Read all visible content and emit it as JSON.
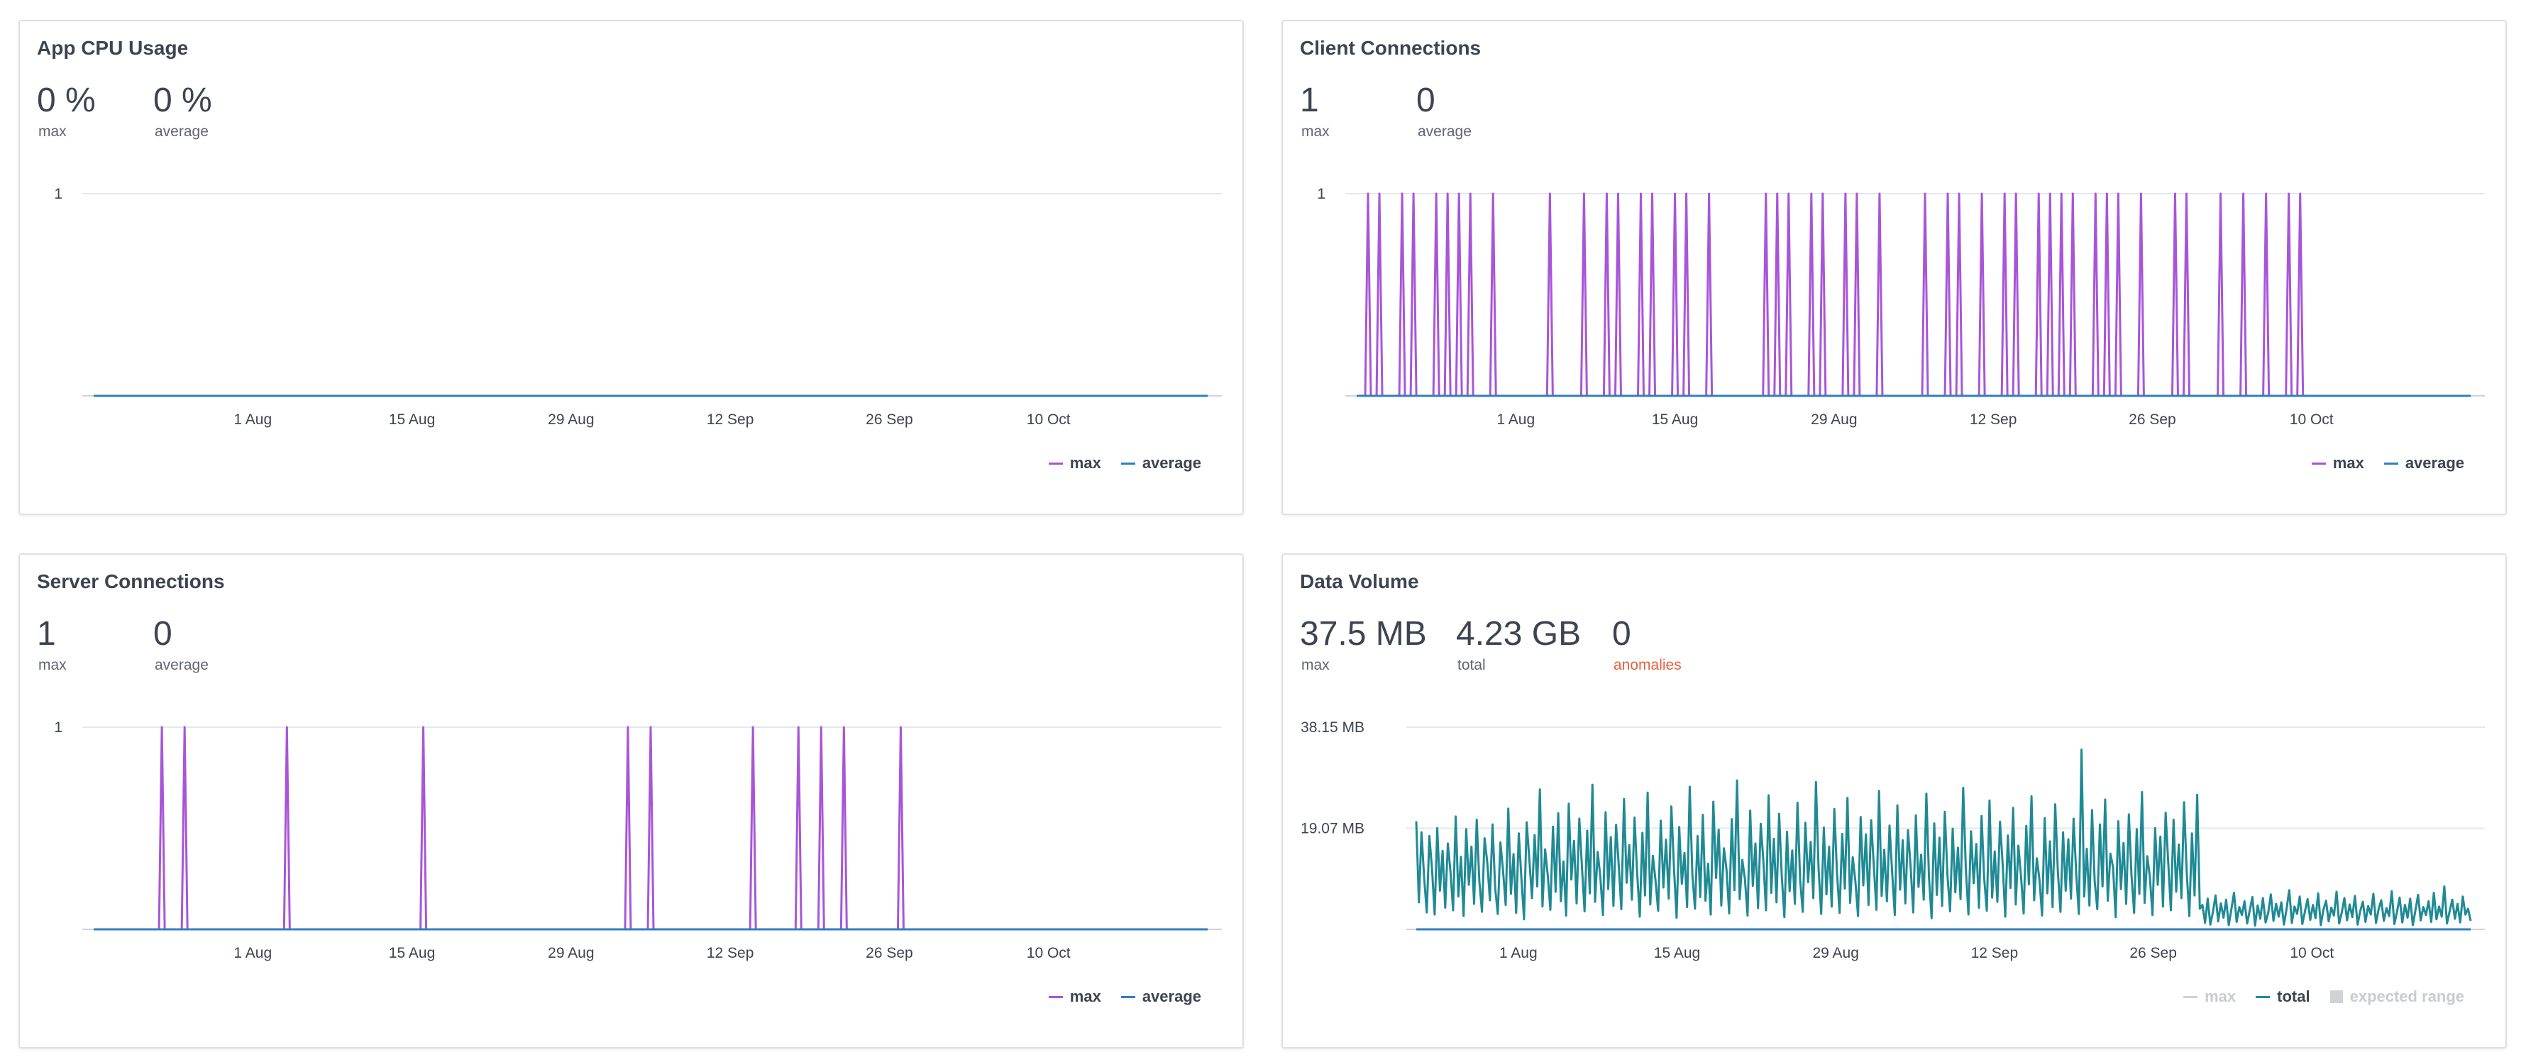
{
  "colors": {
    "max": "#a855d8",
    "average": "#2f7fc1",
    "total": "#1f8a94",
    "muted": "#cfd3d8"
  },
  "panels": [
    {
      "title": "App CPU Usage",
      "stats": [
        {
          "value": "0 %",
          "label": "max"
        },
        {
          "value": "0 %",
          "label": "average"
        }
      ],
      "legend": [
        {
          "label": "max",
          "color": "#a855d8"
        },
        {
          "label": "average",
          "color": "#2f7fc1"
        }
      ]
    },
    {
      "title": "Client Connections",
      "stats": [
        {
          "value": "1",
          "label": "max"
        },
        {
          "value": "0",
          "label": "average"
        }
      ],
      "legend": [
        {
          "label": "max",
          "color": "#a855d8"
        },
        {
          "label": "average",
          "color": "#2f7fc1"
        }
      ]
    },
    {
      "title": "Server Connections",
      "stats": [
        {
          "value": "1",
          "label": "max"
        },
        {
          "value": "0",
          "label": "average"
        }
      ],
      "legend": [
        {
          "label": "max",
          "color": "#a855d8"
        },
        {
          "label": "average",
          "color": "#2f7fc1"
        }
      ]
    },
    {
      "title": "Data Volume",
      "stats": [
        {
          "value": "37.5 MB",
          "label": "max"
        },
        {
          "value": "4.23 GB",
          "label": "total"
        },
        {
          "value": "0",
          "label": "anomalies"
        }
      ],
      "legend": [
        {
          "label": "max",
          "color": "#cfd3d8",
          "muted": true
        },
        {
          "label": "total",
          "color": "#1f8a94"
        },
        {
          "label": "expected range",
          "color": "#cfd3d8",
          "muted": true,
          "box": true
        }
      ]
    }
  ],
  "chart_data": [
    {
      "type": "line",
      "x_range": [
        "2024-07-18",
        "2024-10-24"
      ],
      "x_ticks": [
        "1 Aug",
        "15 Aug",
        "29 Aug",
        "12 Sep",
        "26 Sep",
        "10 Oct"
      ],
      "y_ticks": [
        "1"
      ],
      "ylim": [
        0,
        1
      ],
      "grid": true,
      "legend_position": "bottom-right",
      "series": [
        {
          "name": "max",
          "color": "#a855d8",
          "spikes": []
        },
        {
          "name": "average",
          "color": "#2f7fc1",
          "constant": 0
        }
      ]
    },
    {
      "type": "line",
      "x_range": [
        "2024-07-18",
        "2024-10-24"
      ],
      "x_ticks": [
        "1 Aug",
        "15 Aug",
        "29 Aug",
        "12 Sep",
        "26 Sep",
        "10 Oct"
      ],
      "y_ticks": [
        "1"
      ],
      "ylim": [
        0,
        1
      ],
      "grid": true,
      "legend_position": "bottom-right",
      "series": [
        {
          "name": "max",
          "color": "#a855d8",
          "spikes": [
            "2024-07-19",
            "2024-07-20",
            "2024-07-22",
            "2024-07-23",
            "2024-07-25",
            "2024-07-26",
            "2024-07-27",
            "2024-07-28",
            "2024-07-30",
            "2024-08-04",
            "2024-08-07",
            "2024-08-09",
            "2024-08-10",
            "2024-08-12",
            "2024-08-13",
            "2024-08-15",
            "2024-08-16",
            "2024-08-18",
            "2024-08-23",
            "2024-08-24",
            "2024-08-25",
            "2024-08-27",
            "2024-08-28",
            "2024-08-30",
            "2024-08-31",
            "2024-09-02",
            "2024-09-06",
            "2024-09-08",
            "2024-09-09",
            "2024-09-11",
            "2024-09-13",
            "2024-09-14",
            "2024-09-16",
            "2024-09-17",
            "2024-09-18",
            "2024-09-19",
            "2024-09-21",
            "2024-09-22",
            "2024-09-23",
            "2024-09-25",
            "2024-09-28",
            "2024-09-29",
            "2024-10-02",
            "2024-10-04",
            "2024-10-06",
            "2024-10-08",
            "2024-10-09"
          ]
        },
        {
          "name": "average",
          "color": "#2f7fc1",
          "constant": 0
        }
      ]
    },
    {
      "type": "line",
      "x_range": [
        "2024-07-18",
        "2024-10-24"
      ],
      "x_ticks": [
        "1 Aug",
        "15 Aug",
        "29 Aug",
        "12 Sep",
        "26 Sep",
        "10 Oct"
      ],
      "y_ticks": [
        "1"
      ],
      "ylim": [
        0,
        1
      ],
      "grid": true,
      "legend_position": "bottom-right",
      "series": [
        {
          "name": "max",
          "color": "#a855d8",
          "spikes": [
            "2024-07-24",
            "2024-07-26",
            "2024-08-04",
            "2024-08-16",
            "2024-09-03",
            "2024-09-05",
            "2024-09-14",
            "2024-09-18",
            "2024-09-20",
            "2024-09-22",
            "2024-09-27"
          ]
        },
        {
          "name": "average",
          "color": "#2f7fc1",
          "constant": 0
        }
      ]
    },
    {
      "type": "line",
      "x_range": [
        "2024-07-23",
        "2024-10-24"
      ],
      "x_ticks": [
        "1 Aug",
        "15 Aug",
        "29 Aug",
        "12 Sep",
        "26 Sep",
        "10 Oct"
      ],
      "y_ticks": [
        "38.15 MB",
        "19.07 MB"
      ],
      "ylim": [
        0,
        38.15
      ],
      "y_unit": "MB",
      "grid": true,
      "legend_position": "bottom-right",
      "series": [
        {
          "name": "total",
          "color": "#1f8a94",
          "values": [
            20.4,
            5.1,
            18.3,
            9.8,
            3.2,
            17.6,
            11.4,
            2.8,
            19.1,
            7.3,
            14.8,
            4.1,
            16.2,
            10.9,
            3.6,
            21.3,
            6.2,
            13.7,
            2.5,
            18.9,
            8.4,
            15.6,
            4.8,
            20.7,
            9.1,
            3.3,
            17.2,
            12.6,
            5.5,
            19.8,
            7.8,
            2.9,
            16.4,
            11.1,
            4.6,
            22.8,
            6.7,
            14.2,
            3.1,
            18.1,
            9.6,
            1.9,
            20.2,
            13.3,
            5.9,
            17.8,
            8.1,
            26.4,
            4.3,
            15.1,
            10.2,
            3.7,
            19.4,
            7.1,
            21.9,
            5.3,
            12.8,
            2.6,
            23.7,
            9.4,
            16.7,
            4.9,
            20.9,
            11.8,
            3.4,
            18.6,
            6.8,
            27.3,
            5.2,
            14.6,
            9.9,
            2.7,
            22.1,
            7.6,
            17.4,
            4.4,
            19.7,
            12.2,
            3.8,
            24.6,
            8.8,
            15.9,
            5.6,
            21.1,
            10.6,
            2.4,
            18.2,
            6.4,
            25.8,
            4.7,
            13.9,
            9.2,
            3.5,
            20.5,
            7.9,
            16.9,
            5.8,
            23.2,
            11.6,
            2.2,
            19.3,
            8.6,
            14.4,
            4.2,
            26.9,
            10.4,
            3.9,
            17.6,
            6.1,
            21.6,
            5.4,
            12.4,
            2.8,
            24.1,
            9.7,
            18.8,
            4.5,
            15.3,
            11.2,
            3.0,
            20.8,
            7.4,
            28.1,
            5.7,
            13.1,
            9.5,
            2.6,
            22.4,
            8.2,
            16.2,
            4.0,
            19.9,
            12.9,
            3.6,
            25.3,
            6.9,
            17.1,
            5.1,
            21.8,
            10.1,
            2.3,
            18.4,
            7.2,
            14.9,
            4.8,
            23.9,
            9.3,
            3.3,
            20.1,
            8.9,
            16.5,
            5.9,
            27.8,
            11.4,
            2.9,
            19.2,
            6.6,
            15.6,
            4.3,
            22.7,
            10.8,
            3.1,
            18.0,
            7.7,
            24.8,
            5.0,
            13.6,
            9.0,
            2.5,
            21.2,
            8.3,
            17.9,
            4.6,
            20.6,
            12.1,
            3.7,
            26.1,
            6.3,
            15.0,
            5.3,
            19.6,
            10.7,
            2.7,
            23.4,
            7.5,
            16.8,
            4.9,
            18.7,
            11.9,
            3.2,
            21.5,
            8.0,
            14.1,
            5.6,
            25.6,
            9.8,
            2.1,
            20.0,
            6.5,
            17.3,
            4.4,
            22.2,
            10.3,
            3.4,
            19.0,
            7.0,
            15.4,
            5.7,
            26.7,
            11.5,
            2.8,
            18.5,
            8.7,
            16.1,
            4.1,
            21.4,
            9.6,
            3.5,
            24.3,
            6.0,
            14.7,
            5.2,
            20.3,
            12.4,
            2.4,
            17.7,
            7.8,
            22.9,
            4.7,
            15.8,
            10.0,
            3.0,
            19.5,
            8.5,
            25.1,
            5.5,
            13.4,
            9.4,
            2.6,
            21.0,
            6.8,
            16.6,
            4.2,
            23.6,
            11.0,
            3.3,
            18.3,
            7.3,
            17.0,
            5.8,
            20.9,
            10.5,
            2.9,
            33.9,
            6.2,
            15.2,
            4.5,
            22.5,
            9.1,
            3.8,
            19.8,
            8.1,
            24.5,
            5.4,
            14.3,
            11.7,
            2.3,
            20.4,
            7.6,
            16.3,
            4.8,
            21.7,
            10.2,
            3.1,
            18.9,
            6.7,
            25.9,
            5.0,
            13.8,
            9.9,
            2.7,
            19.1,
            8.4,
            17.5,
            4.3,
            22.0,
            12.6,
            3.6,
            20.7,
            7.1,
            16.0,
            5.9,
            24.0,
            10.9,
            2.5,
            18.1,
            6.4,
            25.4,
            3.9,
            4.6,
            1.2,
            5.8,
            0.9,
            3.3,
            6.4,
            1.5,
            4.9,
            2.2,
            5.6,
            0.8,
            3.8,
            6.9,
            1.4,
            4.2,
            2.7,
            5.3,
            1.1,
            3.6,
            6.1,
            0.7,
            4.5,
            2.0,
            5.9,
            1.3,
            3.1,
            6.6,
            1.6,
            4.8,
            2.4,
            5.1,
            0.9,
            3.9,
            7.4,
            1.2,
            4.3,
            2.9,
            6.2,
            1.0,
            3.4,
            5.7,
            1.8,
            4.6,
            2.1,
            6.8,
            0.8,
            3.7,
            5.4,
            1.5,
            4.1,
            2.6,
            7.1,
            1.1,
            3.2,
            5.9,
            1.7,
            4.7,
            2.3,
            6.3,
            0.9,
            3.5,
            5.2,
            1.4,
            4.4,
            2.8,
            6.7,
            1.2,
            3.8,
            5.5,
            1.6,
            4.0,
            2.5,
            7.2,
            1.0,
            3.3,
            6.0,
            1.3,
            4.6,
            2.2,
            5.8,
            0.8,
            3.6,
            6.5,
            1.7,
            4.2,
            2.7,
            5.3,
            1.4,
            6.9,
            1.9,
            4.3,
            2.4,
            8.1,
            1.1,
            3.4,
            5.6,
            2.0,
            4.8,
            1.3,
            6.2,
            2.8,
            3.9,
            1.6
          ]
        },
        {
          "name": "average",
          "color": "#2f7fc1",
          "constant": 0
        }
      ]
    }
  ]
}
